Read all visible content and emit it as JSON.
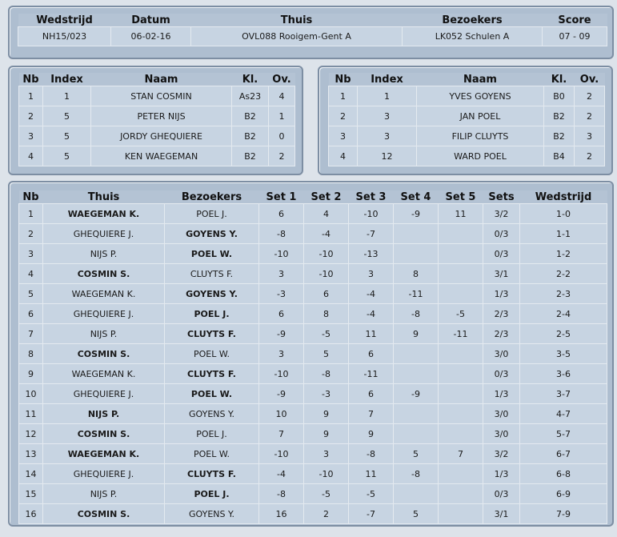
{
  "summary": {
    "headers": [
      "Wedstrijd",
      "Datum",
      "Thuis",
      "Bezoekers",
      "Score"
    ],
    "values": [
      "NH15/023",
      "06-02-16",
      "OVL088 Rooigem-Gent A",
      "LK052 Schulen A",
      "07 - 09"
    ]
  },
  "player_headers": [
    "Nb",
    "Index",
    "Naam",
    "Kl.",
    "Ov."
  ],
  "home_players": [
    {
      "nb": "1",
      "index": "1",
      "naam": "STAN COSMIN",
      "kl": "As23",
      "ov": "4"
    },
    {
      "nb": "2",
      "index": "5",
      "naam": "PETER NIJS",
      "kl": "B2",
      "ov": "1"
    },
    {
      "nb": "3",
      "index": "5",
      "naam": "JORDY GHEQUIERE",
      "kl": "B2",
      "ov": "0"
    },
    {
      "nb": "4",
      "index": "5",
      "naam": "KEN WAEGEMAN",
      "kl": "B2",
      "ov": "2"
    }
  ],
  "away_players": [
    {
      "nb": "1",
      "index": "1",
      "naam": "YVES GOYENS",
      "kl": "B0",
      "ov": "2"
    },
    {
      "nb": "2",
      "index": "3",
      "naam": "JAN POEL",
      "kl": "B2",
      "ov": "2"
    },
    {
      "nb": "3",
      "index": "3",
      "naam": "FILIP CLUYTS",
      "kl": "B2",
      "ov": "3"
    },
    {
      "nb": "4",
      "index": "12",
      "naam": "WARD POEL",
      "kl": "B4",
      "ov": "2"
    }
  ],
  "game_headers": [
    "Nb",
    "Thuis",
    "Bezoekers",
    "Set 1",
    "Set 2",
    "Set 3",
    "Set 4",
    "Set 5",
    "Sets",
    "Wedstrijd"
  ],
  "games": [
    {
      "nb": "1",
      "thuis": "WAEGEMAN K.",
      "bezoekers": "POEL J.",
      "winner": "home",
      "set1": "6",
      "set2": "4",
      "set3": "-10",
      "set4": "-9",
      "set5": "11",
      "sets": "3/2",
      "wedstrijd": "1-0"
    },
    {
      "nb": "2",
      "thuis": "GHEQUIERE J.",
      "bezoekers": "GOYENS Y.",
      "winner": "away",
      "set1": "-8",
      "set2": "-4",
      "set3": "-7",
      "set4": "",
      "set5": "",
      "sets": "0/3",
      "wedstrijd": "1-1"
    },
    {
      "nb": "3",
      "thuis": "NIJS P.",
      "bezoekers": "POEL W.",
      "winner": "away",
      "set1": "-10",
      "set2": "-10",
      "set3": "-13",
      "set4": "",
      "set5": "",
      "sets": "0/3",
      "wedstrijd": "1-2"
    },
    {
      "nb": "4",
      "thuis": "COSMIN S.",
      "bezoekers": "CLUYTS F.",
      "winner": "home",
      "set1": "3",
      "set2": "-10",
      "set3": "3",
      "set4": "8",
      "set5": "",
      "sets": "3/1",
      "wedstrijd": "2-2"
    },
    {
      "nb": "5",
      "thuis": "WAEGEMAN K.",
      "bezoekers": "GOYENS Y.",
      "winner": "away",
      "set1": "-3",
      "set2": "6",
      "set3": "-4",
      "set4": "-11",
      "set5": "",
      "sets": "1/3",
      "wedstrijd": "2-3"
    },
    {
      "nb": "6",
      "thuis": "GHEQUIERE J.",
      "bezoekers": "POEL J.",
      "winner": "away",
      "set1": "6",
      "set2": "8",
      "set3": "-4",
      "set4": "-8",
      "set5": "-5",
      "sets": "2/3",
      "wedstrijd": "2-4"
    },
    {
      "nb": "7",
      "thuis": "NIJS P.",
      "bezoekers": "CLUYTS F.",
      "winner": "away",
      "set1": "-9",
      "set2": "-5",
      "set3": "11",
      "set4": "9",
      "set5": "-11",
      "sets": "2/3",
      "wedstrijd": "2-5"
    },
    {
      "nb": "8",
      "thuis": "COSMIN S.",
      "bezoekers": "POEL W.",
      "winner": "home",
      "set1": "3",
      "set2": "5",
      "set3": "6",
      "set4": "",
      "set5": "",
      "sets": "3/0",
      "wedstrijd": "3-5"
    },
    {
      "nb": "9",
      "thuis": "WAEGEMAN K.",
      "bezoekers": "CLUYTS F.",
      "winner": "away",
      "set1": "-10",
      "set2": "-8",
      "set3": "-11",
      "set4": "",
      "set5": "",
      "sets": "0/3",
      "wedstrijd": "3-6"
    },
    {
      "nb": "10",
      "thuis": "GHEQUIERE J.",
      "bezoekers": "POEL W.",
      "winner": "away",
      "set1": "-9",
      "set2": "-3",
      "set3": "6",
      "set4": "-9",
      "set5": "",
      "sets": "1/3",
      "wedstrijd": "3-7"
    },
    {
      "nb": "11",
      "thuis": "NIJS P.",
      "bezoekers": "GOYENS Y.",
      "winner": "home",
      "set1": "10",
      "set2": "9",
      "set3": "7",
      "set4": "",
      "set5": "",
      "sets": "3/0",
      "wedstrijd": "4-7"
    },
    {
      "nb": "12",
      "thuis": "COSMIN S.",
      "bezoekers": "POEL J.",
      "winner": "home",
      "set1": "7",
      "set2": "9",
      "set3": "9",
      "set4": "",
      "set5": "",
      "sets": "3/0",
      "wedstrijd": "5-7"
    },
    {
      "nb": "13",
      "thuis": "WAEGEMAN K.",
      "bezoekers": "POEL W.",
      "winner": "home",
      "set1": "-10",
      "set2": "3",
      "set3": "-8",
      "set4": "5",
      "set5": "7",
      "sets": "3/2",
      "wedstrijd": "6-7"
    },
    {
      "nb": "14",
      "thuis": "GHEQUIERE J.",
      "bezoekers": "CLUYTS F.",
      "winner": "away",
      "set1": "-4",
      "set2": "-10",
      "set3": "11",
      "set4": "-8",
      "set5": "",
      "sets": "1/3",
      "wedstrijd": "6-8"
    },
    {
      "nb": "15",
      "thuis": "NIJS P.",
      "bezoekers": "POEL J.",
      "winner": "away",
      "set1": "-8",
      "set2": "-5",
      "set3": "-5",
      "set4": "",
      "set5": "",
      "sets": "0/3",
      "wedstrijd": "6-9"
    },
    {
      "nb": "16",
      "thuis": "COSMIN S.",
      "bezoekers": "GOYENS Y.",
      "winner": "home",
      "set1": "16",
      "set2": "2",
      "set3": "-7",
      "set4": "5",
      "set5": "",
      "sets": "3/1",
      "wedstrijd": "7-9"
    }
  ]
}
